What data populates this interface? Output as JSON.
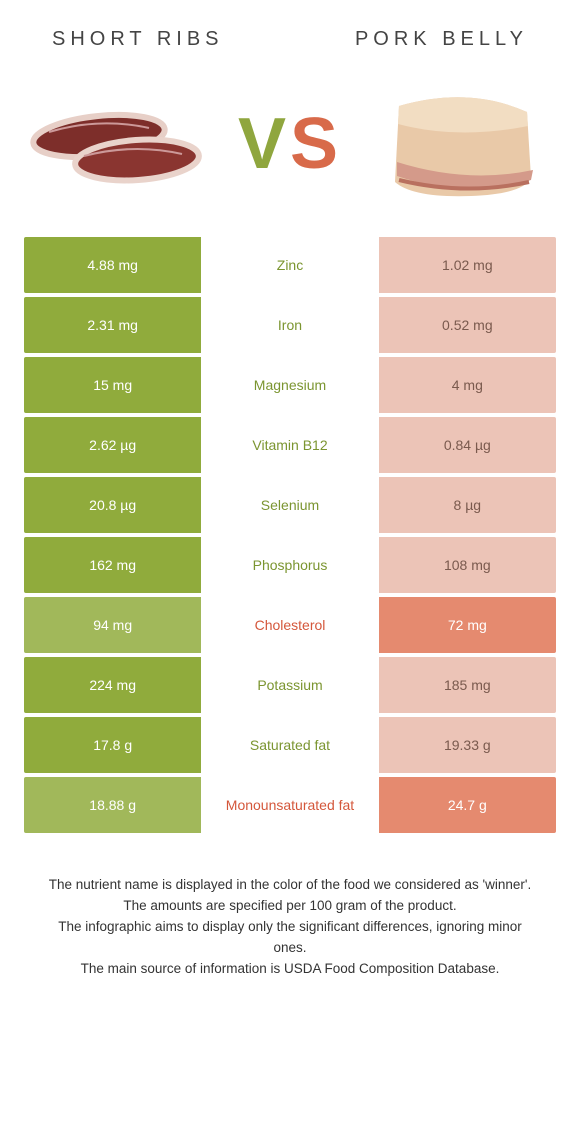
{
  "title_left": "Short ribs",
  "title_right": "Pork belly",
  "vs_left": "V",
  "vs_right": "S",
  "colors": {
    "left_winner_bg": "#90ab3c",
    "left_loser_bg": "#a1b85a",
    "right_winner_bg": "#e58a6f",
    "right_loser_bg": "#ecc4b7",
    "label_left_win": "#7b9530",
    "label_right_win": "#d4573b",
    "right_text_winner": "#ffffff",
    "right_text_loser": "#7a5a4e",
    "row_bg": "#ffffff"
  },
  "rows": [
    {
      "label": "Zinc",
      "left": "4.88 mg",
      "right": "1.02 mg",
      "winner": "left"
    },
    {
      "label": "Iron",
      "left": "2.31 mg",
      "right": "0.52 mg",
      "winner": "left"
    },
    {
      "label": "Magnesium",
      "left": "15 mg",
      "right": "4 mg",
      "winner": "left"
    },
    {
      "label": "Vitamin B12",
      "left": "2.62 µg",
      "right": "0.84 µg",
      "winner": "left"
    },
    {
      "label": "Selenium",
      "left": "20.8 µg",
      "right": "8 µg",
      "winner": "left"
    },
    {
      "label": "Phosphorus",
      "left": "162 mg",
      "right": "108 mg",
      "winner": "left"
    },
    {
      "label": "Cholesterol",
      "left": "94 mg",
      "right": "72 mg",
      "winner": "right"
    },
    {
      "label": "Potassium",
      "left": "224 mg",
      "right": "185 mg",
      "winner": "left"
    },
    {
      "label": "Saturated fat",
      "left": "17.8 g",
      "right": "19.33 g",
      "winner": "left"
    },
    {
      "label": "Monounsaturated fat",
      "left": "18.88 g",
      "right": "24.7 g",
      "winner": "right"
    }
  ],
  "footer": [
    "The nutrient name is displayed in the color of the food we considered as 'winner'.",
    "The amounts are specified per 100 gram of the product.",
    "The infographic aims to display only the significant differences, ignoring minor ones.",
    "The main source of information is USDA Food Composition Database."
  ]
}
